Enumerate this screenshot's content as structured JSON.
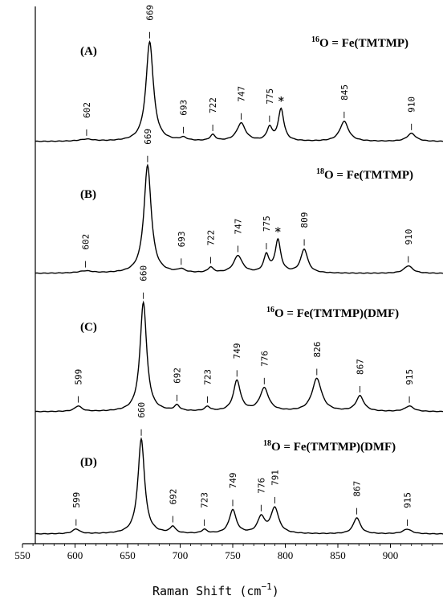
{
  "chart_data": {
    "type": "line",
    "xlabel_text": "Raman Shift (cm",
    "xlabel_sup": "−1",
    "xlabel_close": ")",
    "xlim": [
      550,
      950
    ],
    "xticks": [
      550,
      600,
      650,
      700,
      750,
      800,
      850,
      900
    ],
    "marker_symbol": "*",
    "panels": [
      {
        "letter": "(A)",
        "title_sup": "16",
        "title_text": "O = Fe(TMTMP)",
        "peaks": [
          {
            "label": "602",
            "x": 611,
            "h": 0.02,
            "w": 8
          },
          {
            "label": "669",
            "x": 671,
            "h": 1.0,
            "w": 4.2
          },
          {
            "label": "693",
            "x": 703,
            "h": 0.03,
            "w": 4
          },
          {
            "label": "722",
            "x": 731,
            "h": 0.06,
            "w": 3
          },
          {
            "label": "747",
            "x": 758,
            "h": 0.18,
            "w": 5
          },
          {
            "label": "775",
            "x": 785,
            "h": 0.13,
            "w": 3
          },
          {
            "label": "*",
            "x": 796,
            "h": 0.32,
            "w": 3.2,
            "marker": true
          },
          {
            "label": "845",
            "x": 856,
            "h": 0.2,
            "w": 5
          },
          {
            "label": "910",
            "x": 920,
            "h": 0.08,
            "w": 5
          }
        ]
      },
      {
        "letter": "(B)",
        "title_sup": "18",
        "title_text": "O = Fe(TMTMP)",
        "peaks": [
          {
            "label": "602",
            "x": 610,
            "h": 0.02,
            "w": 8
          },
          {
            "label": "669",
            "x": 669,
            "h": 1.0,
            "w": 4.2
          },
          {
            "label": "693",
            "x": 701,
            "h": 0.03,
            "w": 4
          },
          {
            "label": "722",
            "x": 729,
            "h": 0.05,
            "w": 3
          },
          {
            "label": "747",
            "x": 755,
            "h": 0.16,
            "w": 5
          },
          {
            "label": "775",
            "x": 782,
            "h": 0.16,
            "w": 3
          },
          {
            "label": "*",
            "x": 793,
            "h": 0.3,
            "w": 3.2,
            "marker": true
          },
          {
            "label": "809",
            "x": 818,
            "h": 0.22,
            "w": 4
          },
          {
            "label": "910",
            "x": 917,
            "h": 0.07,
            "w": 5
          }
        ]
      },
      {
        "letter": "(C)",
        "title_sup": "16",
        "title_text": "O = Fe(TMTMP)(DMF)",
        "peaks": [
          {
            "label": "599",
            "x": 603,
            "h": 0.05,
            "w": 4
          },
          {
            "label": "660",
            "x": 665,
            "h": 1.0,
            "w": 3.8
          },
          {
            "label": "692",
            "x": 697,
            "h": 0.05,
            "w": 3
          },
          {
            "label": "723",
            "x": 726,
            "h": 0.04,
            "w": 3
          },
          {
            "label": "749",
            "x": 754,
            "h": 0.28,
            "w": 4
          },
          {
            "label": "776",
            "x": 780,
            "h": 0.21,
            "w": 5
          },
          {
            "label": "826",
            "x": 830,
            "h": 0.3,
            "w": 5.5
          },
          {
            "label": "867",
            "x": 871,
            "h": 0.14,
            "w": 4.5
          },
          {
            "label": "915",
            "x": 918,
            "h": 0.05,
            "w": 5
          }
        ]
      },
      {
        "letter": "(D)",
        "title_sup": "18",
        "title_text": "O = Fe(TMTMP)(DMF)",
        "peaks": [
          {
            "label": "599",
            "x": 601,
            "h": 0.05,
            "w": 4
          },
          {
            "label": "660",
            "x": 663,
            "h": 1.0,
            "w": 3.8
          },
          {
            "label": "692",
            "x": 693,
            "h": 0.07,
            "w": 3
          },
          {
            "label": "723",
            "x": 723,
            "h": 0.04,
            "w": 3
          },
          {
            "label": "749",
            "x": 750,
            "h": 0.25,
            "w": 4
          },
          {
            "label": "776",
            "x": 777,
            "h": 0.17,
            "w": 4
          },
          {
            "label": "791",
            "x": 790,
            "h": 0.27,
            "w": 4.5
          },
          {
            "label": "867",
            "x": 868,
            "h": 0.17,
            "w": 4
          },
          {
            "label": "915",
            "x": 916,
            "h": 0.05,
            "w": 5
          }
        ]
      }
    ]
  }
}
